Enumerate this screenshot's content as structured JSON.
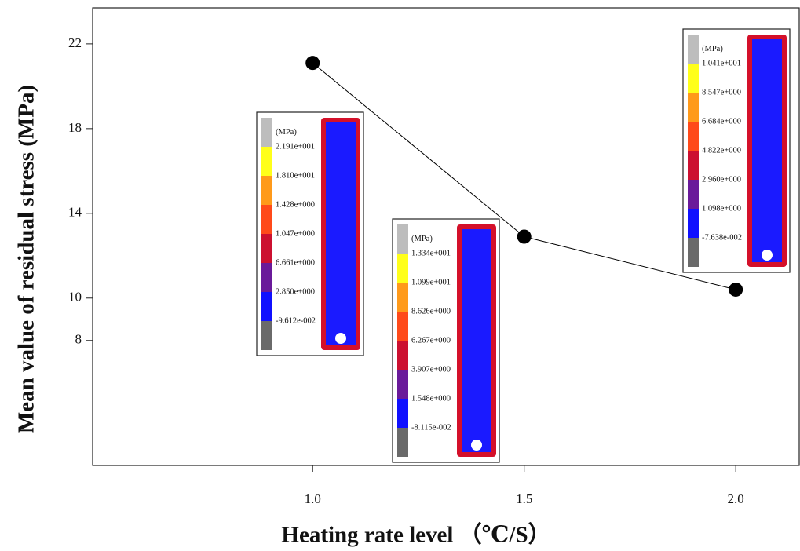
{
  "chart_data": {
    "type": "line",
    "xlabel": "Heating  rate level （℃/S）",
    "ylabel": "Mean value of residual stress (MPa)",
    "x": [
      1.0,
      1.5,
      2.0
    ],
    "values": [
      21.1,
      12.9,
      10.4
    ],
    "color": "#000000",
    "xlim": [
      0.48,
      2.15
    ],
    "xticks": [
      {
        "value": 1.0,
        "label": "1.0"
      },
      {
        "value": 1.5,
        "label": "1.5"
      },
      {
        "value": 2.0,
        "label": "2.0"
      }
    ],
    "ylim": [
      2.1,
      23.7
    ],
    "yticks": [
      8,
      10,
      14,
      18,
      22
    ],
    "insets": [
      {
        "unit": "(MPa)",
        "levels": [
          "2.191e+001",
          "1.810e+001",
          "1.428e+000",
          "1.047e+000",
          "6.661e+000",
          "2.850e+000",
          "-9.612e-002"
        ]
      },
      {
        "unit": "(MPa)",
        "levels": [
          "1.334e+001",
          "1.099e+001",
          "8.626e+000",
          "6.267e+000",
          "3.907e+000",
          "1.548e+000",
          "-8.115e-002"
        ]
      },
      {
        "unit": "(MPa)",
        "levels": [
          "1.041e+001",
          "8.547e+000",
          "6.684e+000",
          "4.822e+000",
          "2.960e+000",
          "1.098e+000",
          "-7.638e-002"
        ]
      }
    ]
  }
}
